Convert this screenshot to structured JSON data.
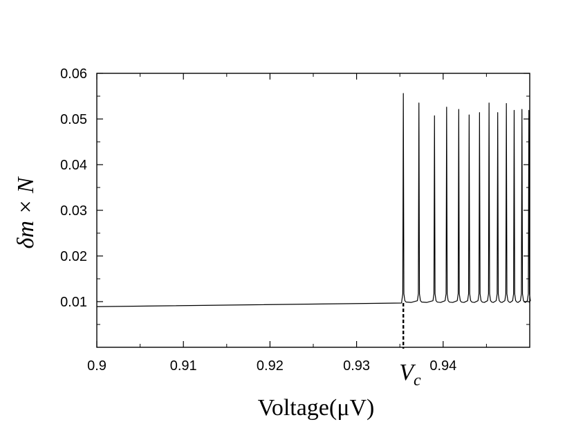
{
  "chart_data": {
    "type": "line",
    "xlabel": "Voltage(μV)",
    "ylabel": "δm × N",
    "xlim": [
      0.9,
      0.95
    ],
    "ylim": [
      0.0,
      0.06
    ],
    "x_ticks": [
      "0.9",
      "0.91",
      "0.92",
      "0.93",
      "0.94"
    ],
    "x_tick_values": [
      0.9,
      0.91,
      0.92,
      0.93,
      0.94
    ],
    "y_ticks": [
      "0.01",
      "0.02",
      "0.03",
      "0.04",
      "0.05",
      "0.06"
    ],
    "y_tick_values": [
      0.01,
      0.02,
      0.03,
      0.04,
      0.05,
      0.06
    ],
    "grid": false,
    "series": [
      {
        "baseline_start": [
          0.9,
          0.0089
        ],
        "baseline_end": [
          0.9352,
          0.0097
        ],
        "oscillation_baseline": 0.0099,
        "spikes": [
          {
            "x": 0.9354,
            "y": 0.0556
          },
          {
            "x": 0.9372,
            "y": 0.0535
          },
          {
            "x": 0.939,
            "y": 0.0507
          },
          {
            "x": 0.9404,
            "y": 0.0526
          },
          {
            "x": 0.9418,
            "y": 0.0521
          },
          {
            "x": 0.943,
            "y": 0.0509
          },
          {
            "x": 0.9442,
            "y": 0.0514
          },
          {
            "x": 0.9453,
            "y": 0.0535
          },
          {
            "x": 0.9463,
            "y": 0.0514
          },
          {
            "x": 0.9473,
            "y": 0.0534
          },
          {
            "x": 0.9482,
            "y": 0.0519
          },
          {
            "x": 0.9491,
            "y": 0.0521
          },
          {
            "x": 0.9499,
            "y": 0.0519
          }
        ]
      }
    ],
    "annotations": [
      {
        "label": "V",
        "subscript": "c",
        "x": 0.9354,
        "style": "dashed-vertical-line"
      }
    ]
  }
}
